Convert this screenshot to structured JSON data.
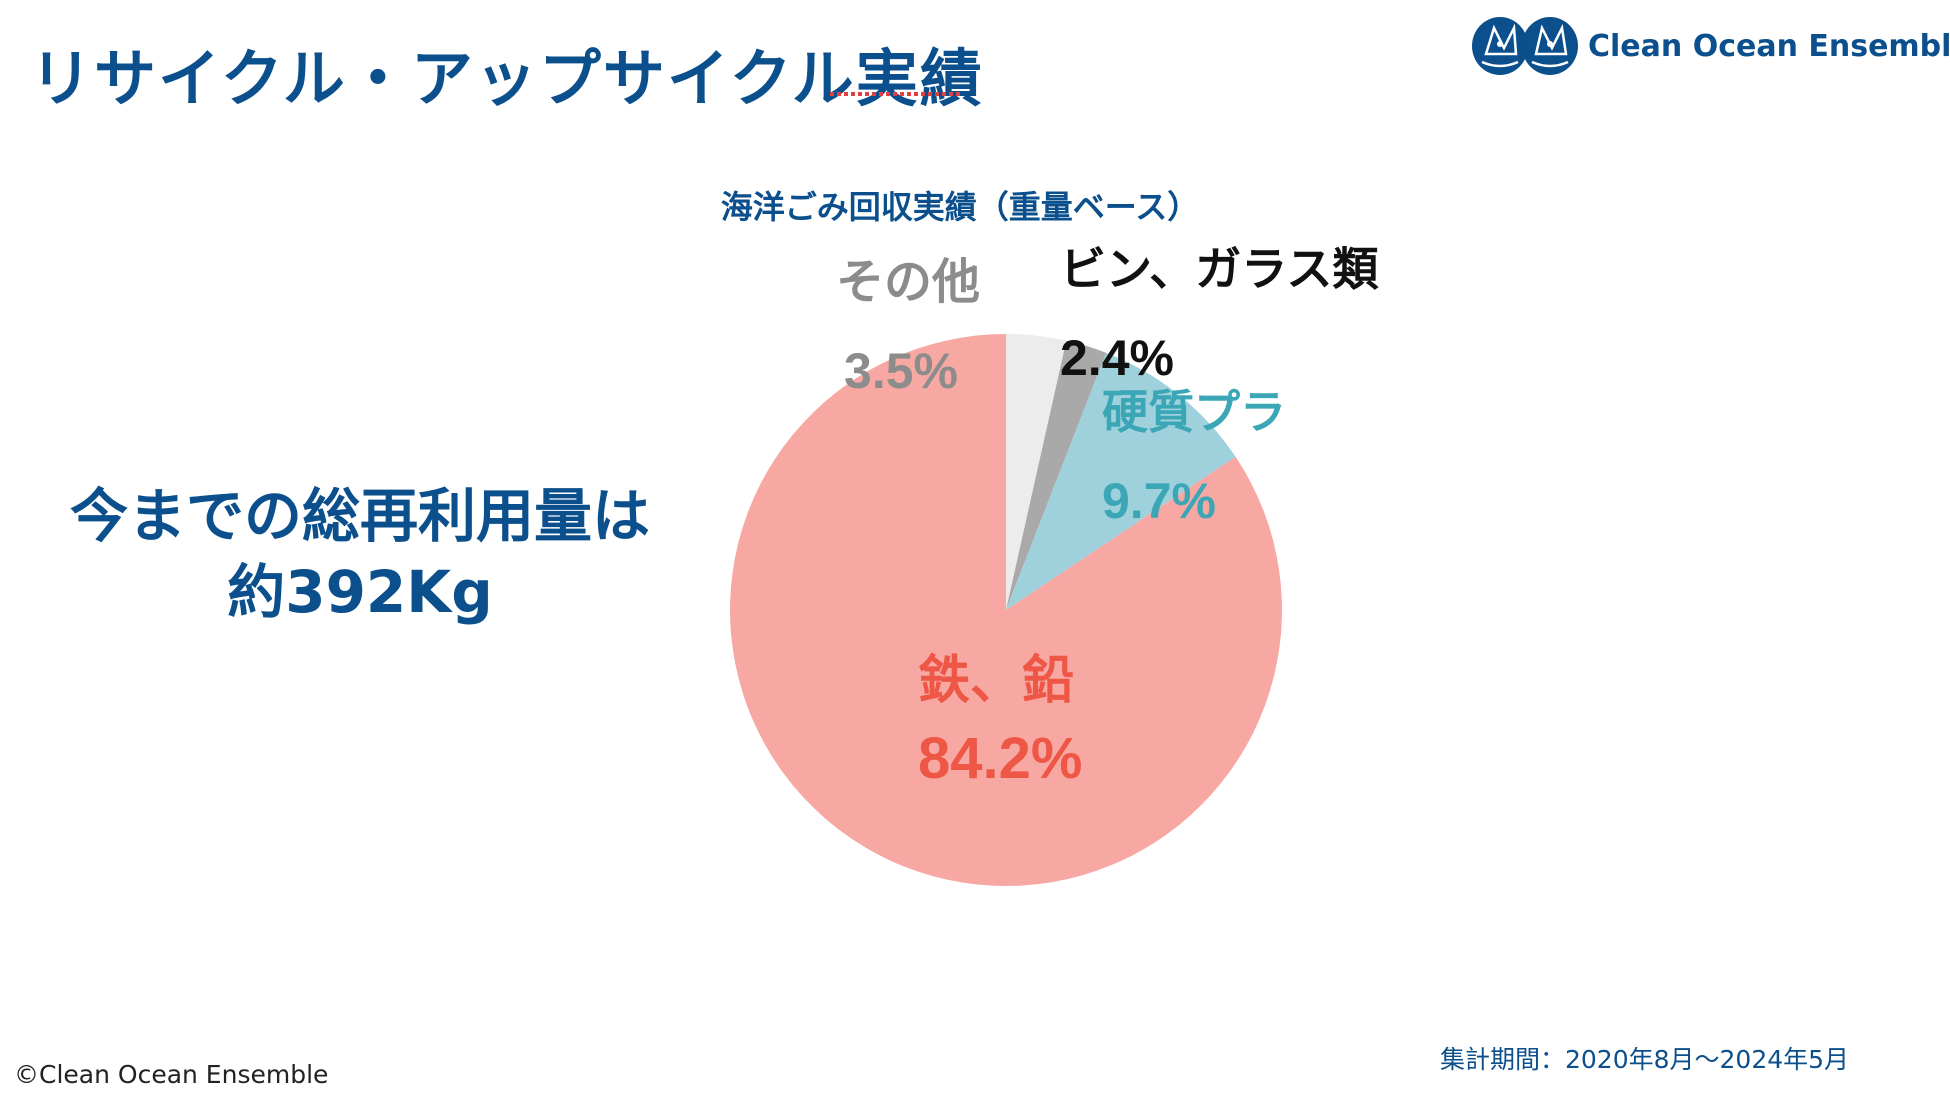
{
  "header": {
    "title": "リサイクル・アップサイクル実績",
    "logo_text": "Clean Ocean Ensemble"
  },
  "summary": {
    "line1": "今までの総再利用量は",
    "line2": "約392Kg"
  },
  "chart_data": {
    "type": "pie",
    "title": "海洋ごみ回収実績（重量ベース）",
    "slices": [
      {
        "label": "その他",
        "value": 3.5,
        "value_text": "3.5%",
        "color": "#ececec",
        "text_color": "#8c8c8c"
      },
      {
        "label": "ビン、ガラス類",
        "value": 2.4,
        "value_text": "2.4%",
        "color": "#a9a9a9",
        "text_color": "#111111"
      },
      {
        "label": "硬質プラ",
        "value": 9.7,
        "value_text": "9.7%",
        "color": "#9fd1dc",
        "text_color": "#3aa6b6"
      },
      {
        "label": "鉄、鉛",
        "value": 84.2,
        "value_text": "84.2%",
        "color": "#f8a8a2",
        "text_color": "#ee5746"
      }
    ]
  },
  "footer": {
    "copyright": "©Clean Ocean Ensemble",
    "period": "集計期間：2020年8月〜2024年5月"
  },
  "colors": {
    "brand": "#0b4f8c"
  }
}
